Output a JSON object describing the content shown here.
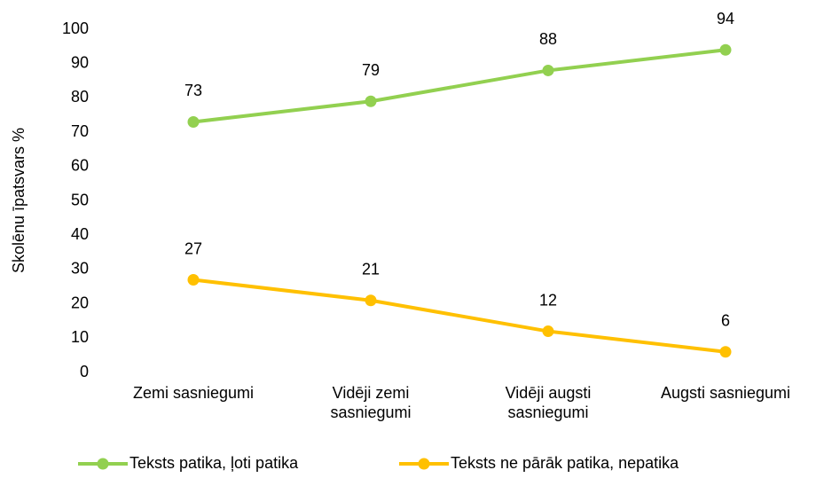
{
  "chart_data": {
    "type": "line",
    "y_label": "Skolēnu īpatsvars %",
    "categories": [
      "Zemi sasniegumi",
      "Vidēji zemi sasniegumi",
      "Vidēji augsti sasniegumi",
      "Augsti sasniegumi"
    ],
    "series": [
      {
        "name": "Teksts patika, ļoti patika",
        "color": "#92d050",
        "values": [
          73,
          79,
          88,
          94
        ]
      },
      {
        "name": "Teksts ne pārāk patika, nepatika",
        "color": "#ffc000",
        "values": [
          27,
          21,
          12,
          6
        ]
      }
    ],
    "ylim": [
      0,
      100
    ],
    "yticks": [
      0,
      10,
      20,
      30,
      40,
      50,
      60,
      70,
      80,
      90,
      100
    ],
    "grid": false,
    "legend": "bottom"
  }
}
